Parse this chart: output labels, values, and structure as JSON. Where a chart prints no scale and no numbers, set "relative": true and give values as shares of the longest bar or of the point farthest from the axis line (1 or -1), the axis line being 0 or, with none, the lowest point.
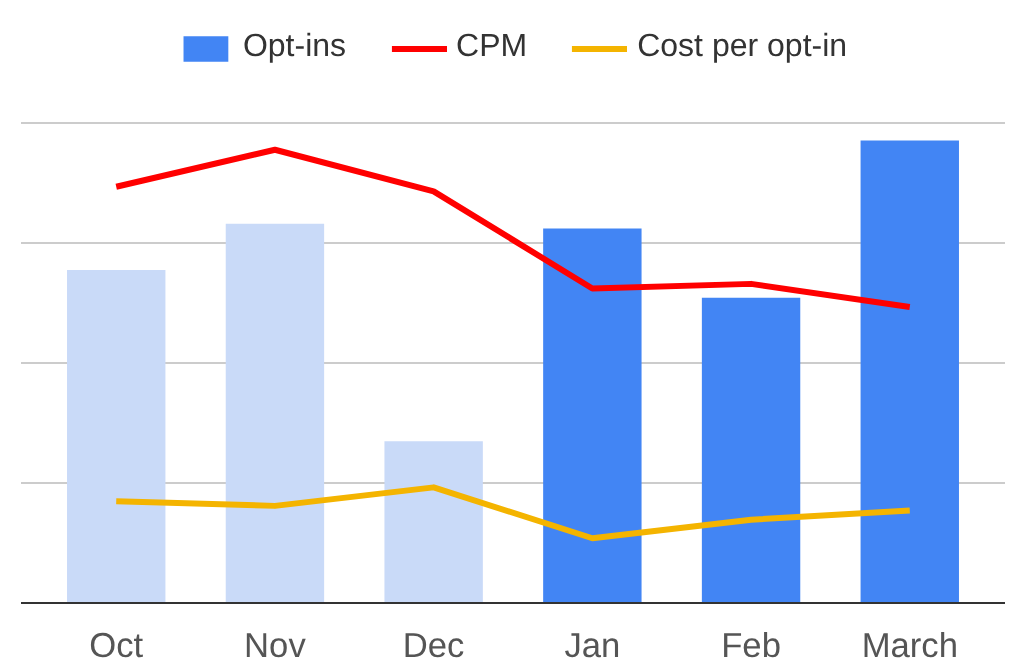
{
  "chart_data": {
    "type": "bar",
    "relative": true,
    "categories": [
      "Oct",
      "Nov",
      "Dec",
      "Jan",
      "Feb",
      "March"
    ],
    "series": [
      {
        "name": "Opt-ins",
        "colors": [
          "#c9daf8",
          "#c9daf8",
          "#c9daf8",
          "#4285f4",
          "#4285f4",
          "#4285f4"
        ],
        "values": [
          0.72,
          0.82,
          0.35,
          0.81,
          0.66,
          1
        ]
      },
      {
        "name": "CPM",
        "type": "line",
        "color": "#ff0000",
        "values": [
          0.9,
          0.98,
          0.89,
          0.68,
          0.69,
          0.64
        ]
      },
      {
        "name": "Cost per opt-in",
        "type": "line",
        "color": "#f4b400",
        "values": [
          0.22,
          0.21,
          0.25,
          0.14,
          0.18,
          0.2
        ]
      }
    ],
    "grid": "y",
    "legend": "top",
    "tick_labels": "x"
  }
}
